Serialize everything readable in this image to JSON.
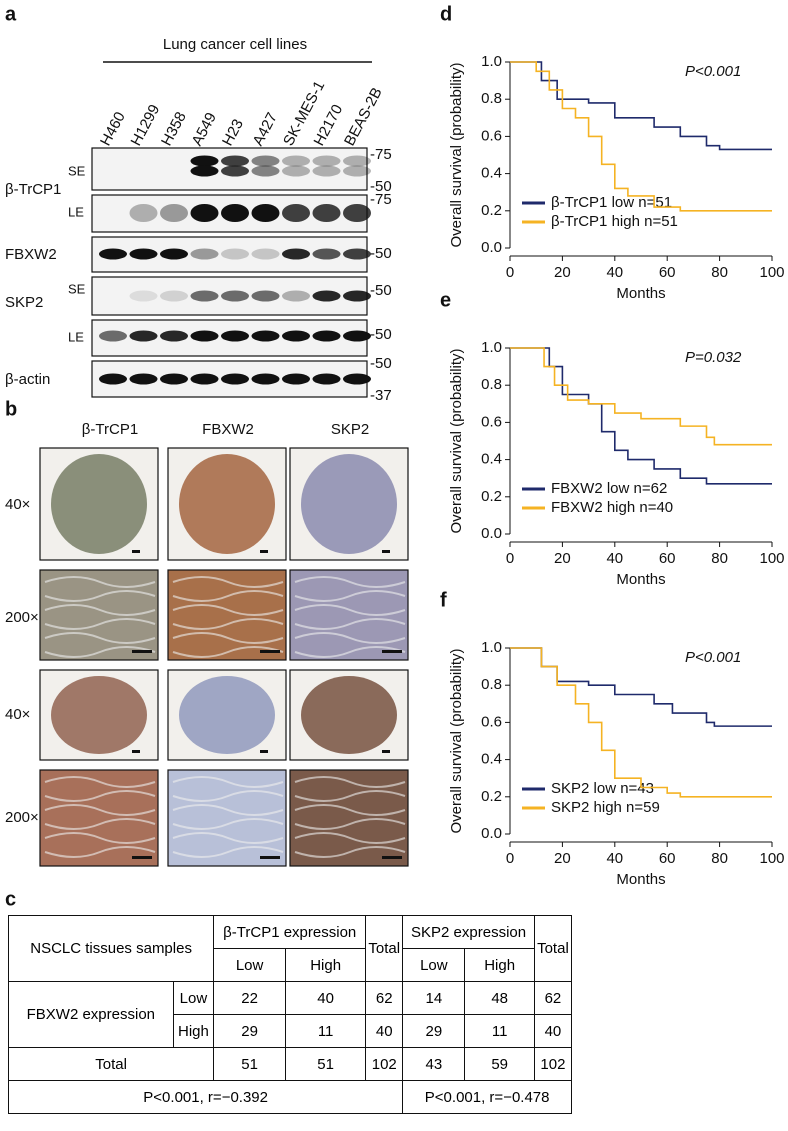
{
  "panels": {
    "a": "a",
    "b": "b",
    "c": "c"
  },
  "blot": {
    "title": "Lung cancer cell lines",
    "lanes": [
      "H460",
      "H1299",
      "H358",
      "A549",
      "H23",
      "A427",
      "SK-MES-1",
      "H2170",
      "BEAS-2B"
    ],
    "proteins": [
      "β-TrCP1",
      "FBXW2",
      "SKP2",
      "β-actin"
    ],
    "exposures": [
      "SE",
      "LE"
    ],
    "markers": [
      "-75",
      "-50",
      "-37"
    ]
  },
  "ihc": {
    "columns": [
      "β-TrCP1",
      "FBXW2",
      "SKP2"
    ],
    "rows": [
      "40×",
      "200×"
    ]
  },
  "table": {
    "corner": "NSCLC tissues samples",
    "group1": "β-TrCP1 expression",
    "group2": "SKP2 expression",
    "total": "Total",
    "sub": [
      "Low",
      "High",
      "Low",
      "High"
    ],
    "row_group": "FBXW2 expression",
    "rows": [
      {
        "label": "Low",
        "cells": [
          22,
          40,
          62,
          14,
          48,
          62
        ]
      },
      {
        "label": "High",
        "cells": [
          29,
          11,
          40,
          29,
          11,
          40
        ]
      }
    ],
    "total_row": {
      "label": "Total",
      "cells": [
        51,
        51,
        102,
        43,
        59,
        102
      ]
    },
    "stats": [
      "P<0.001, r=−0.392",
      "P<0.001, r=−0.478"
    ]
  },
  "chart_data": [
    {
      "type": "step",
      "panel": "d",
      "annotation": "P<0.001",
      "xlabel": "Months",
      "ylabel": "Overall survival (probability)",
      "xlim": [
        0,
        100
      ],
      "ylim": [
        0,
        1
      ],
      "xticks": [
        0,
        20,
        40,
        60,
        80,
        100
      ],
      "yticks": [
        {
          "value": 0,
          "label": "0.0"
        },
        0.2,
        0.4,
        0.6,
        0.8,
        {
          "value": 1,
          "label": "1.0"
        }
      ],
      "series": [
        {
          "name": "β-TrCP1 low n=51",
          "color": "#1f2a6b",
          "x": [
            0,
            12,
            18,
            30,
            40,
            55,
            65,
            75,
            80,
            100
          ],
          "values": [
            1,
            0.9,
            0.8,
            0.78,
            0.7,
            0.65,
            0.6,
            0.55,
            0.53,
            0.53
          ]
        },
        {
          "name": "β-TrCP1 high n=51",
          "color": "#f5b323",
          "x": [
            0,
            10,
            15,
            20,
            25,
            30,
            35,
            40,
            45,
            55,
            65,
            100
          ],
          "values": [
            1,
            0.95,
            0.85,
            0.75,
            0.7,
            0.6,
            0.45,
            0.32,
            0.28,
            0.22,
            0.2,
            0.2
          ]
        }
      ]
    },
    {
      "type": "step",
      "panel": "e",
      "annotation": "P=0.032",
      "xlabel": "Months",
      "ylabel": "Overall survival (probability)",
      "xlim": [
        0,
        100
      ],
      "ylim": [
        0,
        1
      ],
      "xticks": [
        0,
        20,
        40,
        60,
        80,
        100
      ],
      "yticks": [
        {
          "value": 0,
          "label": "0.0"
        },
        0.2,
        0.4,
        0.6,
        0.8,
        {
          "value": 1,
          "label": "1.0"
        }
      ],
      "series": [
        {
          "name": "FBXW2 low n=62",
          "color": "#1f2a6b",
          "x": [
            0,
            15,
            20,
            30,
            35,
            40,
            45,
            55,
            65,
            75,
            100
          ],
          "values": [
            1,
            0.9,
            0.75,
            0.7,
            0.55,
            0.45,
            0.4,
            0.35,
            0.3,
            0.27,
            0.27
          ]
        },
        {
          "name": "FBXW2 high n=40",
          "color": "#f5b323",
          "x": [
            0,
            13,
            17,
            22,
            30,
            40,
            50,
            65,
            75,
            78,
            100
          ],
          "values": [
            1,
            0.9,
            0.8,
            0.72,
            0.7,
            0.65,
            0.62,
            0.58,
            0.52,
            0.48,
            0.48
          ]
        }
      ]
    },
    {
      "type": "step",
      "panel": "f",
      "annotation": "P<0.001",
      "xlabel": "Months",
      "ylabel": "Overall survival (probability)",
      "xlim": [
        0,
        100
      ],
      "ylim": [
        0,
        1
      ],
      "xticks": [
        0,
        20,
        40,
        60,
        80,
        100
      ],
      "yticks": [
        {
          "value": 0,
          "label": "0.0"
        },
        0.2,
        0.4,
        0.6,
        0.8,
        {
          "value": 1,
          "label": "1.0"
        }
      ],
      "series": [
        {
          "name": "SKP2 low n=43",
          "color": "#1f2a6b",
          "x": [
            0,
            12,
            18,
            30,
            40,
            55,
            62,
            75,
            78,
            100
          ],
          "values": [
            1,
            0.9,
            0.82,
            0.8,
            0.75,
            0.7,
            0.65,
            0.6,
            0.58,
            0.58
          ]
        },
        {
          "name": "SKP2 high n=59",
          "color": "#f5b323",
          "x": [
            0,
            12,
            18,
            25,
            30,
            35,
            40,
            50,
            60,
            65,
            100
          ],
          "values": [
            1,
            0.9,
            0.8,
            0.7,
            0.6,
            0.45,
            0.3,
            0.25,
            0.22,
            0.2,
            0.2
          ]
        }
      ]
    }
  ]
}
